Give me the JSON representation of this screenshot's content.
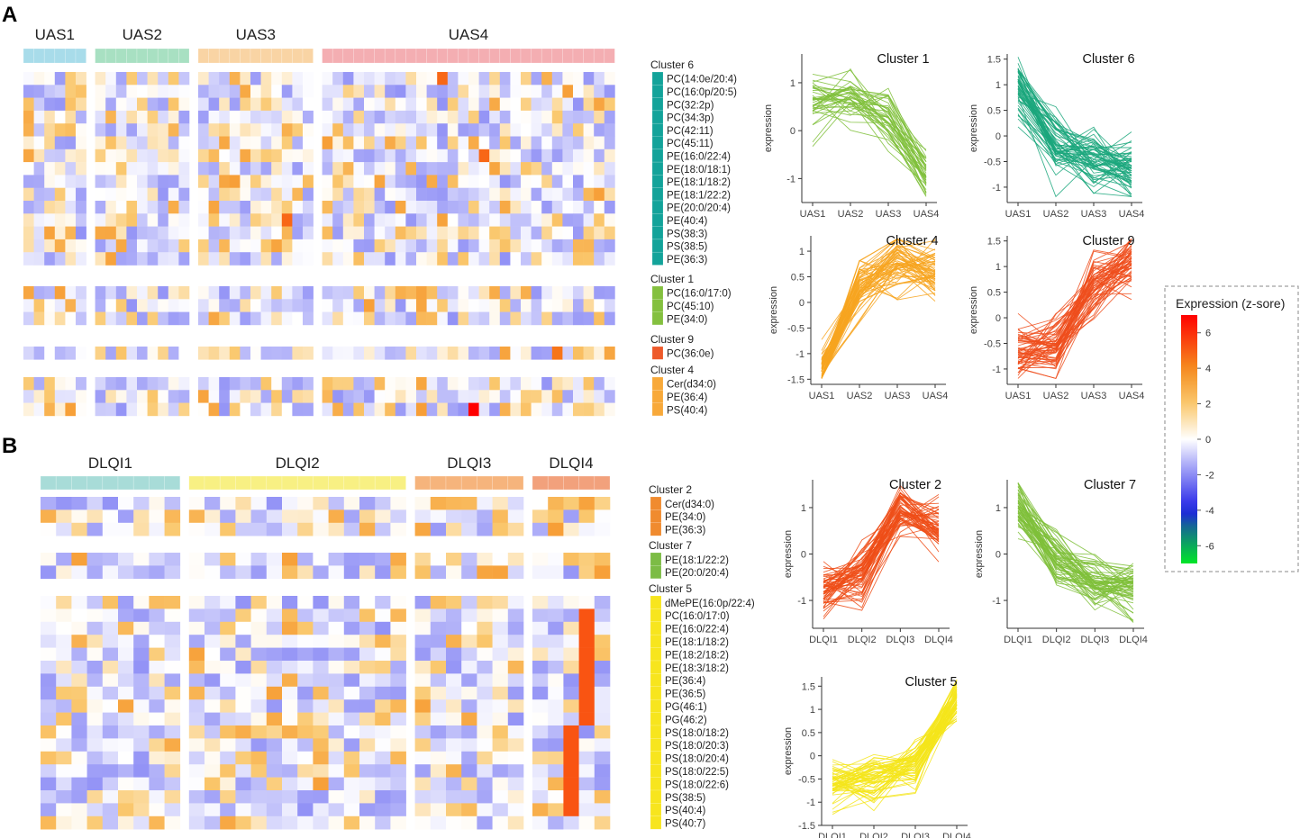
{
  "panel_a": {
    "label": "A",
    "groups": [
      {
        "name": "UAS1",
        "n": 6,
        "color": "#a8dcea"
      },
      {
        "name": "UAS2",
        "n": 9,
        "color": "#a8e0c2"
      },
      {
        "name": "UAS3",
        "n": 11,
        "color": "#f9d4a4"
      },
      {
        "name": "UAS4",
        "n": 28,
        "color": "#f4aeb2"
      }
    ],
    "clusters": [
      {
        "title": "Cluster 6",
        "color": "#13a39a",
        "rows": [
          "PC(14:0e/20:4)",
          "PC(16:0p/20:5)",
          "PC(32:2p)",
          "PC(34:3p)",
          "PC(42:11)",
          "PC(45:11)",
          "PE(16:0/22:4)",
          "PE(18:0/18:1)",
          "PE(18:1/18:2)",
          "PE(18:1/22:2)",
          "PE(20:0/20:4)",
          "PE(40:4)",
          "PS(38:3)",
          "PS(38:5)",
          "PE(36:3)"
        ]
      },
      {
        "title": "Cluster 1",
        "color": "#84c03f",
        "rows": [
          "PC(16:0/17:0)",
          "PC(45:10)",
          "PE(34:0)"
        ]
      },
      {
        "title": "Cluster 9",
        "color": "#ee5a2b",
        "rows": [
          "PC(36:0e)"
        ]
      },
      {
        "title": "Cluster 4",
        "color": "#f8a93a",
        "rows": [
          "Cer(d34:0)",
          "PE(36:4)",
          "PS(40:4)"
        ]
      }
    ]
  },
  "panel_b": {
    "label": "B",
    "groups": [
      {
        "name": "DLQI1",
        "n": 9,
        "color": "#a8dcd8"
      },
      {
        "name": "DLQI2",
        "n": 14,
        "color": "#f8f083"
      },
      {
        "name": "DLQI3",
        "n": 7,
        "color": "#f6b47c"
      },
      {
        "name": "DLQI4",
        "n": 5,
        "color": "#f2a17c"
      }
    ],
    "clusters": [
      {
        "title": "Cluster 2",
        "color": "#f08b2f",
        "rows": [
          "Cer(d34:0)",
          "PE(34:0)",
          "PE(36:3)"
        ]
      },
      {
        "title": "Cluster 7",
        "color": "#7cbc45",
        "rows": [
          "PE(18:1/22:2)",
          "PE(20:0/20:4)"
        ]
      },
      {
        "title": "Cluster 5",
        "color": "#f7e51e",
        "rows": [
          "dMePE(16:0p/22:4)",
          "PC(16:0/17:0)",
          "PE(16:0/22:4)",
          "PE(18:1/18:2)",
          "PE(18:2/18:2)",
          "PE(18:3/18:2)",
          "PE(36:4)",
          "PE(36:5)",
          "PG(46:1)",
          "PG(46:2)",
          "PS(18:0/18:2)",
          "PS(18:0/20:3)",
          "PS(18:0/20:4)",
          "PS(18:0/22:5)",
          "PS(18:0/22:6)",
          "PS(38:5)",
          "PS(40:4)",
          "PS(40:7)"
        ]
      }
    ]
  },
  "legend": {
    "title": "Expression (z-sore)",
    "ticks": [
      6,
      4,
      2,
      0,
      -2,
      -4,
      -6
    ],
    "range": [
      -7,
      7
    ]
  },
  "chart_data": [
    {
      "type": "line",
      "title": "Cluster 1",
      "color": "#7fbf3a",
      "categories": [
        "UAS1",
        "UAS2",
        "UAS3",
        "UAS4"
      ],
      "ylabel": "expression",
      "ylim": [
        -1.5,
        1.6
      ],
      "yticks": [
        -1,
        0,
        1
      ],
      "mean": [
        0.55,
        0.8,
        0.3,
        -0.9
      ],
      "n_lines": 40
    },
    {
      "type": "line",
      "title": "Cluster 6",
      "color": "#1ba77c",
      "categories": [
        "UAS1",
        "UAS2",
        "UAS3",
        "UAS4"
      ],
      "ylabel": "expression",
      "ylim": [
        -1.3,
        1.6
      ],
      "yticks": [
        -1.0,
        -0.5,
        0.0,
        0.5,
        1.0,
        1.5
      ],
      "mean": [
        1.0,
        -0.2,
        -0.5,
        -0.65
      ],
      "n_lines": 60
    },
    {
      "type": "line",
      "title": "Cluster 4",
      "color": "#f7a520",
      "categories": [
        "UAS1",
        "UAS2",
        "UAS3",
        "UAS4"
      ],
      "ylabel": "expression",
      "ylim": [
        -1.6,
        1.3
      ],
      "yticks": [
        -1.5,
        -1.0,
        -0.5,
        0.0,
        0.5,
        1.0
      ],
      "mean": [
        -1.4,
        0.35,
        0.75,
        0.55
      ],
      "n_lines": 60
    },
    {
      "type": "line",
      "title": "Cluster 9",
      "color": "#ee4d1c",
      "categories": [
        "UAS1",
        "UAS2",
        "UAS3",
        "UAS4"
      ],
      "ylabel": "expression",
      "ylim": [
        -1.3,
        1.6
      ],
      "yticks": [
        -1.0,
        -0.5,
        0.0,
        0.5,
        1.0,
        1.5
      ],
      "mean": [
        -0.65,
        -0.55,
        0.6,
        1.1
      ],
      "n_lines": 60
    },
    {
      "type": "line",
      "title": "Cluster 2",
      "color": "#ef4d18",
      "categories": [
        "DLQI1",
        "DLQI2",
        "DLQI3",
        "DLQI4"
      ],
      "ylabel": "expression",
      "ylim": [
        -1.6,
        1.6
      ],
      "yticks": [
        -1,
        0,
        1
      ],
      "mean": [
        -0.75,
        -0.5,
        0.9,
        0.5
      ],
      "n_lines": 60
    },
    {
      "type": "line",
      "title": "Cluster 7",
      "color": "#7fbf3a",
      "categories": [
        "DLQI1",
        "DLQI2",
        "DLQI3",
        "DLQI4"
      ],
      "ylabel": "expression",
      "ylim": [
        -1.6,
        1.6
      ],
      "yticks": [
        -1,
        0,
        1
      ],
      "mean": [
        1.0,
        -0.1,
        -0.6,
        -0.75
      ],
      "n_lines": 60
    },
    {
      "type": "line",
      "title": "Cluster 5",
      "color": "#f5e51a",
      "categories": [
        "DLQI1",
        "DLQI2",
        "DLQI3",
        "DLQI4"
      ],
      "ylabel": "expression",
      "ylim": [
        -1.5,
        1.7
      ],
      "yticks": [
        -1.5,
        -1.0,
        -0.5,
        0.0,
        0.5,
        1.0,
        1.5
      ],
      "mean": [
        -0.55,
        -0.45,
        -0.2,
        1.25
      ],
      "n_lines": 60
    }
  ]
}
